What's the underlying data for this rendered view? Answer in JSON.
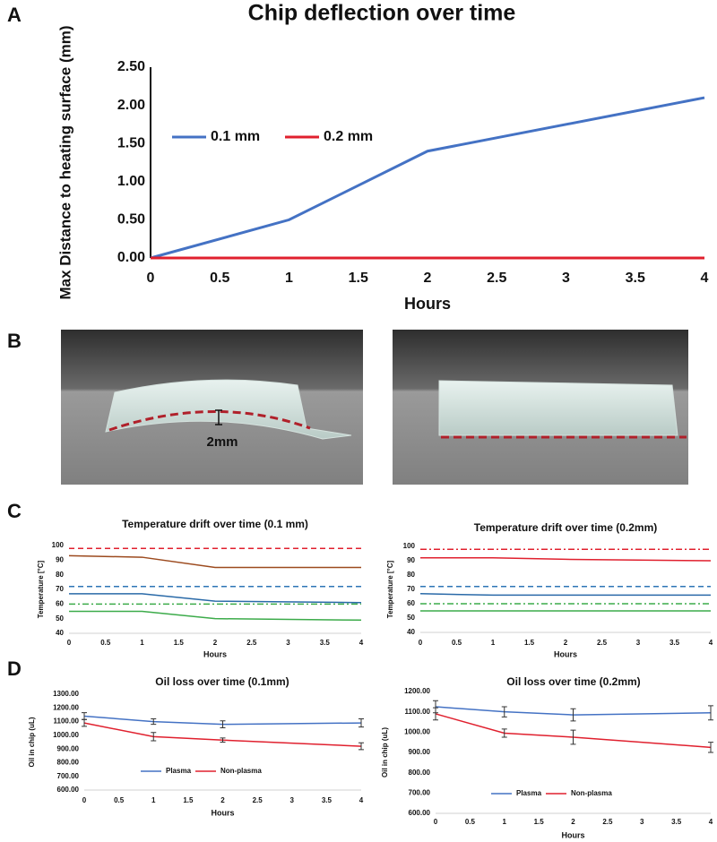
{
  "panel_labels": [
    "A",
    "B",
    "C",
    "D"
  ],
  "photo_annotation": "2mm",
  "chart_data": [
    {
      "type": "line",
      "title": "Chip deflection over time",
      "x_label": "Hours",
      "y_label": "Max Distance to heating surface (mm)",
      "x": [
        0,
        1,
        2,
        4
      ],
      "series": [
        {
          "name": "0.1 mm",
          "color": "#4472c4",
          "values": [
            0,
            0.5,
            1.4,
            2.1
          ]
        },
        {
          "name": "0.2 mm",
          "color": "#e0202e",
          "values": [
            0,
            0,
            0,
            0
          ]
        }
      ],
      "xlim": [
        0,
        4
      ],
      "xticks": [
        0,
        0.5,
        1,
        1.5,
        2,
        2.5,
        3,
        3.5,
        4
      ],
      "ylim": [
        0,
        2.5
      ],
      "yticks": [
        {
          "value": 0,
          "label": "0.00"
        },
        {
          "value": 0.5,
          "label": "0.50"
        },
        {
          "value": 1,
          "label": "1.00"
        },
        {
          "value": 1.5,
          "label": "1.50"
        },
        {
          "value": 2,
          "label": "2.00"
        },
        {
          "value": 2.5,
          "label": "2.50"
        }
      ],
      "legend": "left"
    },
    {
      "type": "line",
      "title": "Temperature drift over time (0.1 mm)",
      "x_label": "Hours",
      "y_label": "Temperature [°C]",
      "x": [
        0,
        1,
        2,
        4
      ],
      "series": [
        {
          "color": "#e0202e",
          "dash": "dashed",
          "values": [
            98,
            98,
            98,
            98
          ]
        },
        {
          "color": "#9c4a1e",
          "values": [
            93,
            92,
            85,
            85
          ]
        },
        {
          "color": "#2e75b6",
          "dash": "dashed",
          "values": [
            72,
            72,
            72,
            72
          ]
        },
        {
          "color": "#2a6aa8",
          "values": [
            67,
            67,
            62,
            61
          ]
        },
        {
          "color": "#3cab4a",
          "dash": "dashdot",
          "values": [
            60,
            60,
            60,
            60
          ]
        },
        {
          "color": "#3cab4a",
          "values": [
            55,
            55,
            50,
            49
          ]
        }
      ],
      "xlim": [
        0,
        4
      ],
      "xticks": [
        0,
        0.5,
        1,
        1.5,
        2,
        2.5,
        3,
        3.5,
        4
      ],
      "ylim": [
        40,
        100
      ],
      "yticks": [
        40,
        50,
        60,
        70,
        80,
        90,
        100
      ]
    },
    {
      "type": "line",
      "title": "Temperature drift over time (0.2mm)",
      "x_label": "Hours",
      "y_label": "Temperature [°C]",
      "x": [
        0,
        1,
        2,
        4
      ],
      "series": [
        {
          "color": "#e0202e",
          "dash": "dashdot",
          "values": [
            98,
            98,
            98,
            98
          ]
        },
        {
          "color": "#e0202e",
          "values": [
            92,
            92,
            91,
            90
          ]
        },
        {
          "color": "#2e75b6",
          "dash": "dashed",
          "values": [
            72,
            72,
            72,
            72
          ]
        },
        {
          "color": "#2a6aa8",
          "values": [
            67,
            66,
            66,
            66
          ]
        },
        {
          "color": "#3cab4a",
          "dash": "dashdot",
          "values": [
            60,
            60,
            60,
            60
          ]
        },
        {
          "color": "#3cab4a",
          "values": [
            55,
            55,
            55,
            55
          ]
        }
      ],
      "xlim": [
        0,
        4
      ],
      "xticks": [
        0,
        0.5,
        1,
        1.5,
        2,
        2.5,
        3,
        3.5,
        4
      ],
      "ylim": [
        40,
        100
      ],
      "yticks": [
        40,
        50,
        60,
        70,
        80,
        90,
        100
      ]
    },
    {
      "type": "line",
      "title": "Oil loss over time (0.1mm)",
      "x_label": "Hours",
      "y_label": "Oil in chip (uL)",
      "x": [
        0,
        1,
        2,
        4
      ],
      "series": [
        {
          "name": "Plasma",
          "color": "#4472c4",
          "values": [
            1140,
            1100,
            1080,
            1090
          ],
          "errors": [
            25,
            20,
            25,
            30
          ]
        },
        {
          "name": "Non-plasma",
          "color": "#e0202e",
          "values": [
            1090,
            990,
            965,
            920
          ],
          "errors": [
            25,
            30,
            15,
            25
          ]
        }
      ],
      "xlim": [
        0,
        4
      ],
      "xticks": [
        0,
        0.5,
        1,
        1.5,
        2,
        2.5,
        3,
        3.5,
        4
      ],
      "ylim": [
        600,
        1300
      ],
      "yticks": [
        {
          "value": 600,
          "label": "600.00"
        },
        {
          "value": 700,
          "label": "700.00"
        },
        {
          "value": 800,
          "label": "800.00"
        },
        {
          "value": 900,
          "label": "900.00"
        },
        {
          "value": 1000,
          "label": "1000.00"
        },
        {
          "value": 1100,
          "label": "1100.00"
        },
        {
          "value": 1200,
          "label": "1200.00"
        },
        {
          "value": 1300,
          "label": "1300.00"
        }
      ],
      "legend": "bottom"
    },
    {
      "type": "line",
      "title": "Oil loss over time (0.2mm)",
      "x_label": "Hours",
      "y_label": "Oil in chip (uL)",
      "x": [
        0,
        1,
        2,
        4
      ],
      "series": [
        {
          "name": "Plasma",
          "color": "#4472c4",
          "values": [
            1125,
            1100,
            1085,
            1095
          ],
          "errors": [
            30,
            25,
            30,
            35
          ]
        },
        {
          "name": "Non-plasma",
          "color": "#e0202e",
          "values": [
            1090,
            995,
            975,
            925
          ],
          "errors": [
            30,
            20,
            35,
            25
          ]
        }
      ],
      "xlim": [
        0,
        4
      ],
      "xticks": [
        0,
        0.5,
        1,
        1.5,
        2,
        2.5,
        3,
        3.5,
        4
      ],
      "ylim": [
        600,
        1200
      ],
      "yticks": [
        {
          "value": 600,
          "label": "600.00"
        },
        {
          "value": 700,
          "label": "700.00"
        },
        {
          "value": 800,
          "label": "800.00"
        },
        {
          "value": 900,
          "label": "900.00"
        },
        {
          "value": 1000,
          "label": "1000.00"
        },
        {
          "value": 1100,
          "label": "1100.00"
        },
        {
          "value": 1200,
          "label": "1200.00"
        }
      ],
      "legend": "bottom"
    }
  ]
}
